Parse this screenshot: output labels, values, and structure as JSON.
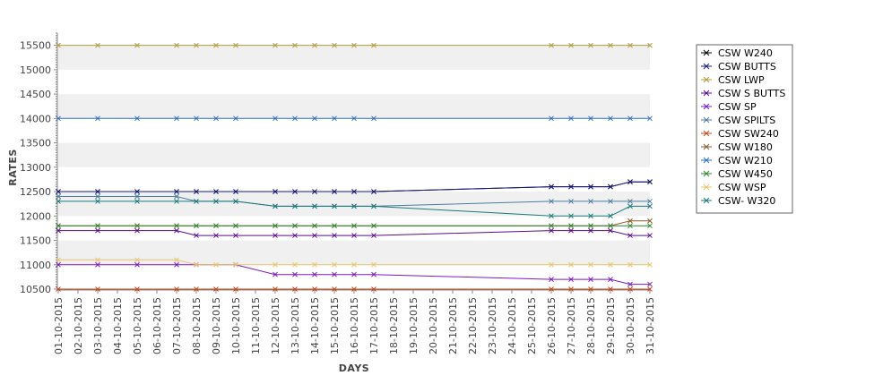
{
  "chart_data": {
    "type": "line",
    "xlabel": "DAYS",
    "ylabel": "RATES",
    "ylim": [
      10500,
      15750
    ],
    "yticks": [
      10500,
      11000,
      11500,
      12000,
      12500,
      13000,
      13500,
      14000,
      14500,
      15000,
      15500
    ],
    "grid": "alternating horizontal bands",
    "legend_position": "right",
    "categories": [
      "01-10-2015",
      "02-10-2015",
      "03-10-2015",
      "04-10-2015",
      "05-10-2015",
      "06-10-2015",
      "07-10-2015",
      "08-10-2015",
      "09-10-2015",
      "10-10-2015",
      "11-10-2015",
      "12-10-2015",
      "13-10-2015",
      "14-10-2015",
      "15-10-2015",
      "16-10-2015",
      "17-10-2015",
      "18-10-2015",
      "19-10-2015",
      "20-10-2015",
      "21-10-2015",
      "22-10-2015",
      "23-10-2015",
      "24-10-2015",
      "25-10-2015",
      "26-10-2015",
      "27-10-2015",
      "28-10-2015",
      "29-10-2015",
      "30-10-2015",
      "31-10-2015"
    ],
    "series": [
      {
        "name": "CSW  W240",
        "color": "#000000",
        "values": [
          12500,
          null,
          12500,
          null,
          12500,
          null,
          12500,
          12500,
          12500,
          12500,
          null,
          12500,
          12500,
          12500,
          12500,
          12500,
          12500,
          null,
          null,
          null,
          null,
          null,
          null,
          null,
          null,
          12600,
          12600,
          12600,
          12600,
          12700,
          12700
        ]
      },
      {
        "name": "CSW BUTTS",
        "color": "#1a1a80",
        "values": [
          12500,
          null,
          12500,
          null,
          12500,
          null,
          12500,
          12500,
          12500,
          12500,
          null,
          12500,
          12500,
          12500,
          12500,
          12500,
          12500,
          null,
          null,
          null,
          null,
          null,
          null,
          null,
          null,
          12600,
          12600,
          12600,
          12600,
          12700,
          12700
        ]
      },
      {
        "name": "CSW LWP",
        "color": "#b39b3a",
        "values": [
          15500,
          null,
          15500,
          null,
          15500,
          null,
          15500,
          15500,
          15500,
          15500,
          null,
          15500,
          15500,
          15500,
          15500,
          15500,
          15500,
          null,
          null,
          null,
          null,
          null,
          null,
          null,
          null,
          15500,
          15500,
          15500,
          15500,
          15500,
          15500
        ]
      },
      {
        "name": "CSW S BUTTS",
        "color": "#5a0c8c",
        "values": [
          11700,
          null,
          11700,
          null,
          11700,
          null,
          11700,
          11600,
          11600,
          11600,
          null,
          11600,
          11600,
          11600,
          11600,
          11600,
          11600,
          null,
          null,
          null,
          null,
          null,
          null,
          null,
          null,
          11700,
          11700,
          11700,
          11700,
          11600,
          11600
        ]
      },
      {
        "name": "CSW SP",
        "color": "#7a1cc8",
        "values": [
          11000,
          null,
          11000,
          null,
          11000,
          null,
          11000,
          11000,
          null,
          11000,
          null,
          10800,
          10800,
          10800,
          10800,
          10800,
          10800,
          null,
          null,
          null,
          null,
          null,
          null,
          null,
          null,
          10700,
          10700,
          10700,
          10700,
          10600,
          10600
        ]
      },
      {
        "name": "CSW SPILTS",
        "color": "#4a7ea0",
        "values": [
          12400,
          null,
          12400,
          null,
          12400,
          null,
          12400,
          12300,
          12300,
          12300,
          null,
          12200,
          12200,
          12200,
          12200,
          12200,
          12200,
          null,
          null,
          null,
          null,
          null,
          null,
          null,
          null,
          12300,
          12300,
          12300,
          12300,
          12300,
          12300
        ]
      },
      {
        "name": "CSW SW240",
        "color": "#c04a1a",
        "values": [
          10500,
          null,
          10500,
          null,
          10500,
          null,
          10500,
          10500,
          10500,
          10500,
          null,
          10500,
          10500,
          10500,
          10500,
          10500,
          10500,
          null,
          null,
          null,
          null,
          null,
          null,
          null,
          null,
          10500,
          10500,
          10500,
          10500,
          10500,
          10500
        ]
      },
      {
        "name": "CSW W180",
        "color": "#8a5a2a",
        "values": [
          11800,
          null,
          11800,
          null,
          11800,
          null,
          11800,
          11800,
          11800,
          11800,
          null,
          11800,
          11800,
          11800,
          11800,
          11800,
          11800,
          null,
          null,
          null,
          null,
          null,
          null,
          null,
          null,
          11800,
          11800,
          11800,
          11800,
          11900,
          11900
        ]
      },
      {
        "name": "CSW W210",
        "color": "#2a6ec8",
        "values": [
          14000,
          null,
          14000,
          null,
          14000,
          null,
          14000,
          14000,
          14000,
          14000,
          null,
          14000,
          14000,
          14000,
          14000,
          14000,
          14000,
          null,
          null,
          null,
          null,
          null,
          null,
          null,
          null,
          14000,
          14000,
          14000,
          14000,
          14000,
          14000
        ]
      },
      {
        "name": "CSW W450",
        "color": "#2a8a2a",
        "values": [
          11800,
          null,
          11800,
          null,
          11800,
          null,
          11800,
          11800,
          11800,
          11800,
          null,
          11800,
          11800,
          11800,
          11800,
          11800,
          11800,
          null,
          null,
          null,
          null,
          null,
          null,
          null,
          null,
          11800,
          11800,
          11800,
          11800,
          11800,
          11800
        ]
      },
      {
        "name": "CSW WSP",
        "color": "#e8c46a",
        "values": [
          11100,
          null,
          11100,
          null,
          11100,
          null,
          11100,
          11000,
          11000,
          11000,
          null,
          11000,
          11000,
          11000,
          11000,
          11000,
          11000,
          null,
          null,
          null,
          null,
          null,
          null,
          null,
          null,
          11000,
          11000,
          11000,
          11000,
          11000,
          11000
        ]
      },
      {
        "name": "CSW- W320",
        "color": "#1a7a7a",
        "values": [
          12300,
          null,
          12300,
          null,
          12300,
          null,
          12300,
          12300,
          12300,
          12300,
          null,
          12200,
          12200,
          12200,
          12200,
          12200,
          12200,
          null,
          null,
          null,
          null,
          null,
          null,
          null,
          null,
          12000,
          12000,
          12000,
          12000,
          12200,
          12200
        ]
      }
    ]
  }
}
